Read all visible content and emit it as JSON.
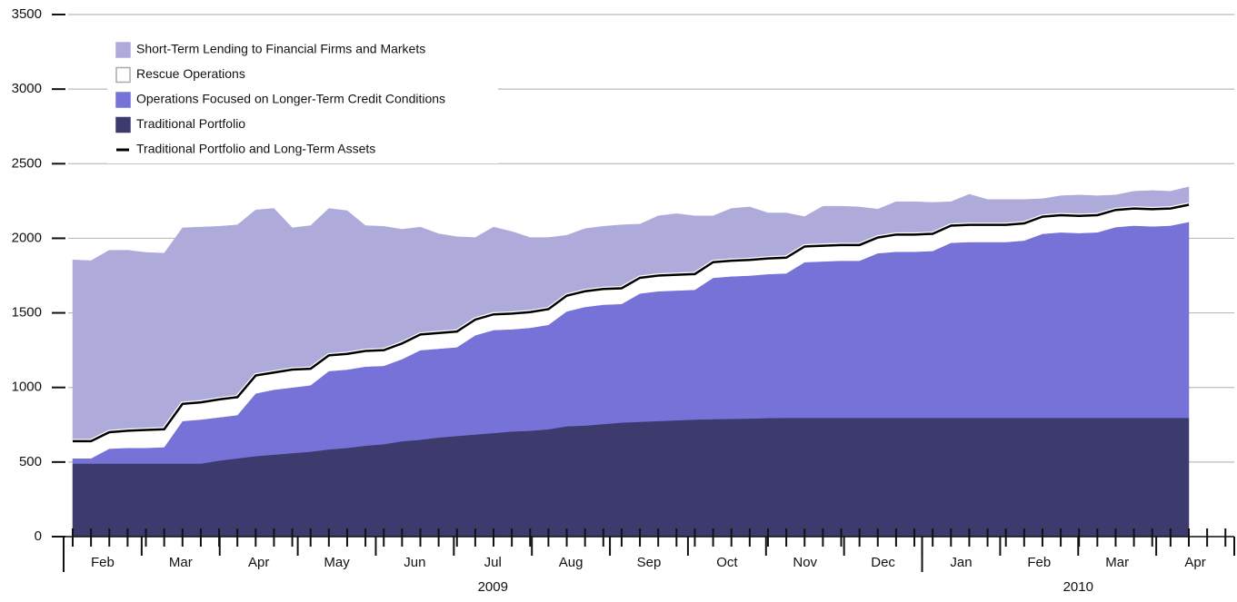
{
  "chart_data": {
    "type": "area",
    "ylim": [
      0,
      3500
    ],
    "yticks": [
      0,
      500,
      1000,
      1500,
      2000,
      2500,
      3000,
      3500
    ],
    "grid": true,
    "x_axis_groups": [
      {
        "label": "2009",
        "months": [
          "Feb",
          "Mar",
          "Apr",
          "May",
          "Jun",
          "Jul",
          "Aug",
          "Sep",
          "Oct",
          "Nov",
          "Dec"
        ]
      },
      {
        "label": "2010",
        "months": [
          "Jan",
          "Feb",
          "Mar",
          "Apr"
        ]
      }
    ],
    "series": [
      {
        "name": "Short-Term Lending to Financial Firms and Markets",
        "color": "#aeabdb",
        "values": [
          1215,
          1210,
          1220,
          1210,
          1190,
          1180,
          1180,
          1175,
          1160,
          1155,
          1110,
          1100,
          950,
          960,
          985,
          960,
          840,
          830,
          765,
          720,
          665,
          635,
          550,
          585,
          550,
          500,
          480,
          405,
          420,
          420,
          425,
          360,
          400,
          410,
          390,
          310,
          350,
          355,
          305,
          300,
          200,
          265,
          260,
          255,
          190,
          220,
          220,
          210,
          160,
          205,
          170,
          170,
          160,
          120,
          130,
          140,
          130,
          100,
          115,
          125,
          115,
          120
        ]
      },
      {
        "name": "Rescue Operations",
        "color": "#ffffff",
        "values": [
          115,
          115,
          110,
          115,
          120,
          120,
          115,
          115,
          120,
          120,
          120,
          115,
          120,
          110,
          105,
          105,
          105,
          105,
          105,
          105,
          105,
          105,
          105,
          105,
          105,
          105,
          105,
          105,
          105,
          105,
          105,
          105,
          105,
          105,
          105,
          105,
          105,
          105,
          105,
          105,
          105,
          105,
          105,
          105,
          105,
          115,
          115,
          115,
          115,
          115,
          115,
          115,
          115,
          115,
          115,
          115,
          115,
          115,
          115,
          115,
          115,
          115
        ]
      },
      {
        "name": "Operations Focused on Longer-Term Credit Conditions",
        "color": "#7672d8",
        "values": [
          35,
          35,
          100,
          105,
          105,
          110,
          285,
          295,
          290,
          290,
          420,
          435,
          440,
          445,
          525,
          525,
          530,
          525,
          550,
          600,
          595,
          595,
          665,
          690,
          685,
          690,
          700,
          770,
          795,
          800,
          795,
          860,
          870,
          870,
          870,
          947,
          955,
          958,
          965,
          968,
          1043,
          1048,
          1053,
          1053,
          1103,
          1113,
          1113,
          1118,
          1173,
          1178,
          1178,
          1178,
          1188,
          1233,
          1243,
          1238,
          1243,
          1278,
          1288,
          1283,
          1288,
          1313
        ]
      },
      {
        "name": "Traditional Portfolio",
        "color": "#3d3b6e",
        "values": [
          490,
          490,
          490,
          490,
          490,
          490,
          490,
          490,
          510,
          525,
          540,
          550,
          560,
          570,
          585,
          595,
          610,
          620,
          640,
          650,
          665,
          675,
          685,
          695,
          705,
          710,
          720,
          740,
          745,
          755,
          765,
          770,
          775,
          780,
          785,
          788,
          790,
          792,
          795,
          797,
          797,
          797,
          797,
          797,
          797,
          797,
          797,
          797,
          797,
          797,
          797,
          797,
          797,
          797,
          797,
          797,
          797,
          797,
          797,
          797,
          797,
          797
        ]
      },
      {
        "name": "Traditional Portfolio and Long-Term Assets",
        "color": "#000000",
        "type": "line",
        "values": [
          640,
          640,
          700,
          710,
          715,
          720,
          890,
          900,
          920,
          935,
          1080,
          1100,
          1120,
          1125,
          1215,
          1225,
          1245,
          1250,
          1295,
          1355,
          1365,
          1375,
          1455,
          1490,
          1495,
          1505,
          1525,
          1615,
          1645,
          1660,
          1665,
          1735,
          1750,
          1755,
          1760,
          1840,
          1850,
          1855,
          1865,
          1870,
          1945,
          1950,
          1955,
          1955,
          2005,
          2025,
          2025,
          2030,
          2085,
          2090,
          2090,
          2090,
          2100,
          2145,
          2155,
          2150,
          2155,
          2190,
          2200,
          2195,
          2200,
          2225
        ]
      }
    ]
  }
}
